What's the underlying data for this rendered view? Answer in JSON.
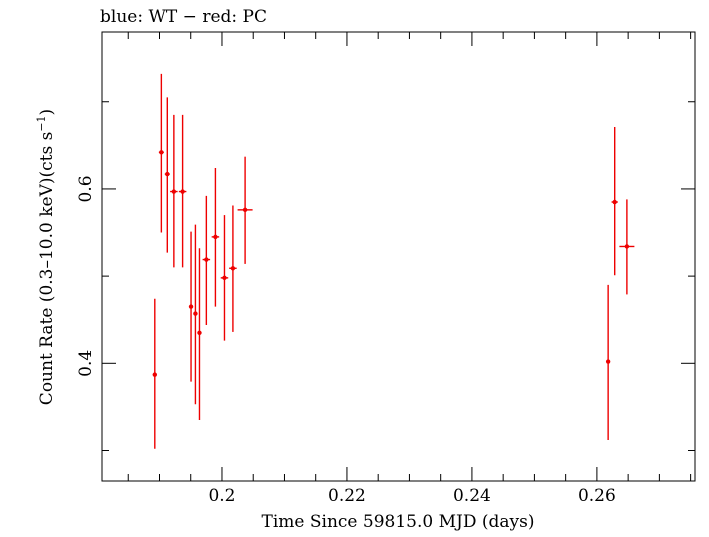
{
  "header": {
    "legend_text": "blue: WT − red: PC"
  },
  "chart_data": {
    "type": "scatter",
    "title": "blue: WT − red: PC",
    "xlabel": "Time Since 59815.0 MJD (days)",
    "ylabel_main": "Count Rate (0.3–10.0 keV)(cts s",
    "ylabel_sup": "−1",
    "ylabel_close": ")",
    "xlim": [
      0.1808,
      0.2757
    ],
    "ylim": [
      0.265,
      0.78
    ],
    "x_ticks_major": [
      0.2,
      0.22,
      0.24,
      0.26
    ],
    "x_tick_labels": [
      "0.2",
      "0.22",
      "0.24",
      "0.26"
    ],
    "x_ticks_minor": [
      0.185,
      0.19,
      0.195,
      0.205,
      0.21,
      0.215,
      0.225,
      0.23,
      0.235,
      0.245,
      0.25,
      0.255,
      0.265,
      0.27,
      0.275
    ],
    "y_ticks_major": [
      0.4,
      0.6
    ],
    "y_tick_labels": [
      "0.4",
      "0.6"
    ],
    "y_ticks_minor": [
      0.3,
      0.5,
      0.7
    ],
    "grid": false,
    "series": [
      {
        "name": "PC",
        "color": "#ee0000",
        "points": [
          {
            "x": 0.18925,
            "y": 0.387,
            "xerr": 0.0002,
            "yerr_lo": 0.085,
            "yerr_hi": 0.087
          },
          {
            "x": 0.1903,
            "y": 0.642,
            "xerr": 0.0004,
            "yerr_lo": 0.092,
            "yerr_hi": 0.09
          },
          {
            "x": 0.19125,
            "y": 0.617,
            "xerr": 0.0004,
            "yerr_lo": 0.09,
            "yerr_hi": 0.088
          },
          {
            "x": 0.1923,
            "y": 0.597,
            "xerr": 0.0006,
            "yerr_lo": 0.087,
            "yerr_hi": 0.088
          },
          {
            "x": 0.1937,
            "y": 0.597,
            "xerr": 0.0006,
            "yerr_lo": 0.087,
            "yerr_hi": 0.088
          },
          {
            "x": 0.19505,
            "y": 0.465,
            "xerr": 0.0002,
            "yerr_lo": 0.086,
            "yerr_hi": 0.086
          },
          {
            "x": 0.19575,
            "y": 0.457,
            "xerr": 0.0002,
            "yerr_lo": 0.104,
            "yerr_hi": 0.102
          },
          {
            "x": 0.1964,
            "y": 0.435,
            "xerr": 0.0002,
            "yerr_lo": 0.1,
            "yerr_hi": 0.097
          },
          {
            "x": 0.1975,
            "y": 0.519,
            "xerr": 0.0006,
            "yerr_lo": 0.075,
            "yerr_hi": 0.073
          },
          {
            "x": 0.19895,
            "y": 0.545,
            "xerr": 0.0006,
            "yerr_lo": 0.08,
            "yerr_hi": 0.079
          },
          {
            "x": 0.2004,
            "y": 0.498,
            "xerr": 0.0006,
            "yerr_lo": 0.072,
            "yerr_hi": 0.072
          },
          {
            "x": 0.20175,
            "y": 0.509,
            "xerr": 0.0006,
            "yerr_lo": 0.073,
            "yerr_hi": 0.072
          },
          {
            "x": 0.2037,
            "y": 0.576,
            "xerr": 0.0012,
            "yerr_lo": 0.062,
            "yerr_hi": 0.061
          },
          {
            "x": 0.2618,
            "y": 0.402,
            "xerr": 0.0002,
            "yerr_lo": 0.09,
            "yerr_hi": 0.088
          },
          {
            "x": 0.26285,
            "y": 0.585,
            "xerr": 0.0005,
            "yerr_lo": 0.084,
            "yerr_hi": 0.086
          },
          {
            "x": 0.2648,
            "y": 0.534,
            "xerr": 0.0012,
            "yerr_lo": 0.055,
            "yerr_hi": 0.054
          }
        ]
      }
    ]
  }
}
